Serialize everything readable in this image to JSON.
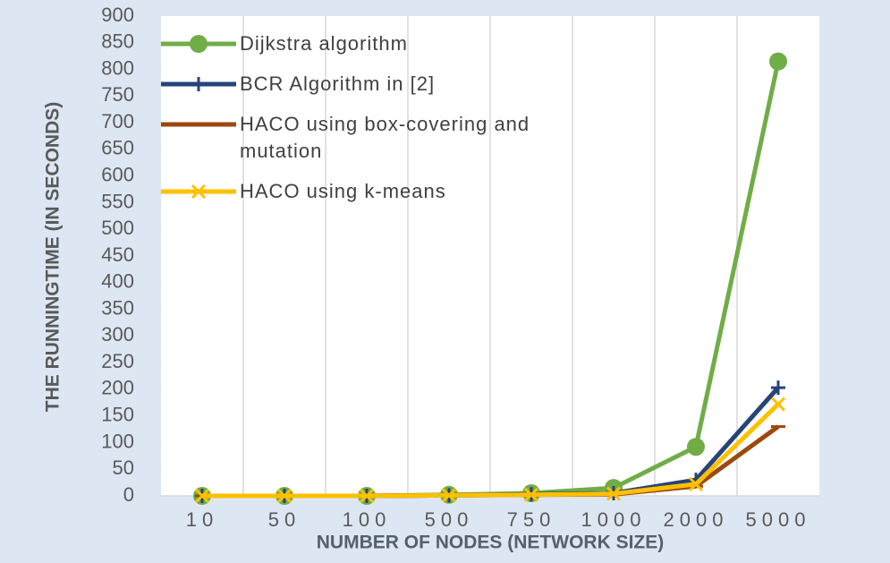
{
  "chart_data": {
    "type": "line",
    "y_label": "THE RUNNINGTIME (IN SECONDS)",
    "x_label": "NUMBER OF NODES (NETWORK SIZE)",
    "categories": [
      "10",
      "50",
      "100",
      "500",
      "750",
      "1000",
      "2000",
      "5000"
    ],
    "series": [
      {
        "name": "Dijkstra algorithm",
        "color": "#70ad47",
        "marker": "circle",
        "values": [
          0,
          0,
          0,
          2,
          5,
          15,
          92,
          815
        ]
      },
      {
        "name": "BCR Algorithm in [2]",
        "color": "#264478",
        "marker": "plus",
        "values": [
          0,
          0,
          0,
          1,
          3,
          5,
          30,
          203
        ]
      },
      {
        "name": "HACO using box-covering and mutation",
        "color": "#9e480e",
        "marker": "dash",
        "values": [
          0,
          0,
          0,
          1,
          2,
          3,
          18,
          130
        ]
      },
      {
        "name": "HACO using k-means",
        "color": "#ffc000",
        "marker": "x",
        "values": [
          0,
          0,
          0,
          1,
          2,
          4,
          22,
          172
        ]
      }
    ],
    "ylim": [
      0,
      900
    ],
    "yticks": [
      0,
      50,
      100,
      150,
      200,
      250,
      300,
      350,
      400,
      450,
      500,
      550,
      600,
      650,
      700,
      750,
      800,
      850,
      900
    ],
    "grid": "x"
  }
}
